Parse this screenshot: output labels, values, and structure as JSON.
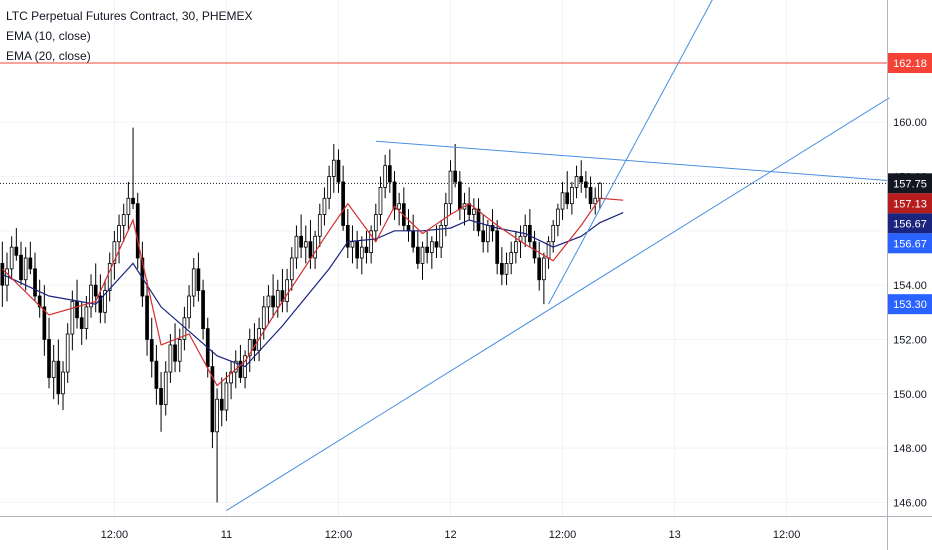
{
  "legend": {
    "title": "LTC Perpetual Futures Contract, 30, PHEMEX",
    "ema10": "EMA (10, close)",
    "ema20": "EMA (20, close)"
  },
  "colors": {
    "up": "#ffffff",
    "down": "#000000",
    "ema10": "#d32f2f",
    "ema20": "#1a237e",
    "trendline": "#4a8fe0",
    "resistance": "#f44336",
    "grid": "#f0f3fa",
    "axis": "#b2b5be"
  },
  "chart_data": {
    "type": "candlestick",
    "title": "LTC Perpetual Futures Contract, 30, PHEMEX",
    "ylim": [
      145.5,
      164.5
    ],
    "y_ticks": [
      "146.00",
      "148.00",
      "150.00",
      "152.00",
      "154.00",
      "156.00",
      "158.00",
      "160.00"
    ],
    "x_ticks": [
      {
        "label": "12:00",
        "bar": 24
      },
      {
        "label": "11",
        "bar": 48
      },
      {
        "label": "12:00",
        "bar": 72
      },
      {
        "label": "12",
        "bar": 96
      },
      {
        "label": "12:00",
        "bar": 120
      },
      {
        "label": "13",
        "bar": 144
      },
      {
        "label": "12:00",
        "bar": 168
      }
    ],
    "total_bars": 190,
    "ohlc": [
      [
        154.8,
        155.6,
        153.2,
        154.0
      ],
      [
        154.0,
        155.2,
        153.4,
        154.6
      ],
      [
        154.6,
        155.8,
        154.2,
        155.4
      ],
      [
        155.4,
        156.1,
        154.9,
        155.1
      ],
      [
        155.1,
        155.6,
        154.0,
        154.2
      ],
      [
        154.2,
        155.4,
        153.8,
        155.0
      ],
      [
        155.0,
        155.6,
        154.4,
        154.6
      ],
      [
        154.6,
        155.2,
        153.4,
        153.6
      ],
      [
        153.6,
        154.2,
        152.8,
        153.2
      ],
      [
        153.2,
        154.0,
        151.4,
        152.0
      ],
      [
        152.0,
        152.8,
        150.2,
        150.6
      ],
      [
        150.6,
        151.8,
        149.8,
        151.2
      ],
      [
        151.2,
        152.0,
        149.6,
        150.0
      ],
      [
        150.0,
        151.2,
        149.4,
        150.8
      ],
      [
        150.8,
        152.6,
        150.4,
        152.2
      ],
      [
        152.2,
        153.8,
        151.6,
        153.4
      ],
      [
        153.4,
        154.2,
        152.4,
        152.8
      ],
      [
        152.8,
        153.4,
        151.8,
        152.4
      ],
      [
        152.4,
        153.6,
        152.0,
        153.2
      ],
      [
        153.2,
        154.4,
        152.8,
        154.0
      ],
      [
        154.0,
        154.8,
        153.0,
        153.6
      ],
      [
        153.6,
        154.4,
        152.6,
        153.0
      ],
      [
        153.0,
        154.2,
        152.6,
        153.8
      ],
      [
        153.8,
        155.2,
        153.4,
        154.8
      ],
      [
        154.8,
        156.0,
        154.2,
        155.6
      ],
      [
        155.6,
        156.6,
        154.8,
        156.2
      ],
      [
        156.2,
        157.0,
        155.6,
        156.6
      ],
      [
        156.6,
        157.8,
        156.0,
        157.2
      ],
      [
        157.2,
        159.8,
        156.8,
        157.0
      ],
      [
        157.0,
        157.4,
        154.6,
        155.0
      ],
      [
        155.0,
        155.6,
        153.2,
        153.6
      ],
      [
        153.6,
        154.2,
        151.4,
        152.0
      ],
      [
        152.0,
        152.8,
        150.6,
        151.2
      ],
      [
        151.2,
        151.8,
        149.6,
        150.2
      ],
      [
        150.2,
        150.8,
        148.6,
        149.6
      ],
      [
        149.6,
        151.2,
        149.2,
        150.8
      ],
      [
        150.8,
        152.2,
        150.4,
        151.8
      ],
      [
        151.8,
        152.6,
        150.8,
        151.2
      ],
      [
        151.2,
        152.4,
        150.8,
        152.0
      ],
      [
        152.0,
        153.2,
        151.6,
        152.8
      ],
      [
        152.8,
        154.0,
        152.4,
        153.6
      ],
      [
        153.6,
        155.0,
        153.2,
        154.6
      ],
      [
        154.6,
        155.2,
        153.4,
        153.8
      ],
      [
        153.8,
        154.2,
        152.0,
        152.4
      ],
      [
        152.4,
        152.8,
        150.6,
        151.0
      ],
      [
        151.0,
        151.6,
        148.0,
        148.6
      ],
      [
        148.6,
        150.2,
        146.0,
        149.8
      ],
      [
        149.8,
        150.6,
        148.8,
        149.4
      ],
      [
        149.4,
        150.8,
        149.0,
        150.4
      ],
      [
        150.4,
        151.2,
        149.8,
        150.8
      ],
      [
        150.8,
        151.6,
        150.2,
        151.2
      ],
      [
        151.2,
        151.8,
        150.4,
        150.6
      ],
      [
        150.6,
        151.6,
        150.2,
        151.4
      ],
      [
        151.4,
        152.4,
        150.8,
        152.0
      ],
      [
        152.0,
        152.6,
        151.2,
        151.6
      ],
      [
        151.6,
        152.8,
        151.2,
        152.4
      ],
      [
        152.4,
        153.6,
        152.0,
        153.2
      ],
      [
        153.2,
        154.0,
        152.6,
        153.6
      ],
      [
        153.6,
        154.4,
        152.8,
        153.2
      ],
      [
        153.2,
        154.2,
        152.8,
        153.8
      ],
      [
        153.8,
        154.6,
        153.0,
        153.4
      ],
      [
        153.4,
        154.6,
        153.0,
        154.2
      ],
      [
        154.2,
        155.4,
        153.8,
        155.0
      ],
      [
        155.0,
        156.2,
        154.6,
        155.8
      ],
      [
        155.8,
        156.6,
        155.0,
        155.4
      ],
      [
        155.4,
        156.2,
        154.8,
        155.6
      ],
      [
        155.6,
        156.4,
        154.6,
        155.0
      ],
      [
        155.0,
        156.0,
        154.6,
        155.8
      ],
      [
        155.8,
        157.0,
        155.4,
        156.6
      ],
      [
        156.6,
        157.6,
        156.2,
        157.2
      ],
      [
        157.2,
        158.4,
        156.8,
        158.0
      ],
      [
        158.0,
        159.2,
        157.4,
        158.6
      ],
      [
        158.6,
        159.0,
        157.4,
        157.8
      ],
      [
        157.8,
        158.4,
        156.0,
        156.2
      ],
      [
        156.2,
        156.8,
        155.0,
        155.4
      ],
      [
        155.4,
        156.2,
        154.8,
        155.6
      ],
      [
        155.6,
        156.0,
        154.6,
        155.0
      ],
      [
        155.0,
        155.8,
        154.4,
        155.4
      ],
      [
        155.4,
        156.0,
        154.8,
        155.2
      ],
      [
        155.2,
        156.2,
        154.8,
        156.0
      ],
      [
        156.0,
        157.0,
        155.6,
        156.6
      ],
      [
        156.6,
        158.0,
        156.2,
        157.6
      ],
      [
        157.6,
        158.8,
        157.2,
        158.4
      ],
      [
        158.4,
        159.0,
        157.4,
        157.8
      ],
      [
        157.8,
        158.2,
        156.4,
        156.8
      ],
      [
        156.8,
        157.4,
        156.2,
        157.0
      ],
      [
        157.0,
        157.6,
        156.0,
        156.2
      ],
      [
        156.2,
        156.8,
        155.6,
        156.0
      ],
      [
        156.0,
        156.6,
        155.2,
        155.4
      ],
      [
        155.4,
        156.0,
        154.6,
        154.8
      ],
      [
        154.8,
        155.6,
        154.2,
        155.4
      ],
      [
        155.4,
        156.0,
        154.8,
        155.2
      ],
      [
        155.2,
        155.8,
        154.6,
        155.6
      ],
      [
        155.6,
        156.2,
        155.0,
        155.4
      ],
      [
        155.4,
        156.4,
        155.0,
        156.2
      ],
      [
        156.2,
        157.4,
        155.8,
        157.0
      ],
      [
        157.0,
        158.6,
        156.6,
        158.2
      ],
      [
        158.2,
        159.2,
        157.6,
        157.8
      ],
      [
        157.8,
        158.2,
        156.4,
        156.8
      ],
      [
        156.8,
        157.4,
        156.2,
        157.0
      ],
      [
        157.0,
        157.6,
        156.4,
        156.6
      ],
      [
        156.6,
        157.2,
        156.0,
        156.8
      ],
      [
        156.8,
        157.2,
        155.8,
        156.0
      ],
      [
        156.0,
        156.6,
        155.2,
        155.6
      ],
      [
        155.6,
        156.4,
        155.2,
        156.2
      ],
      [
        156.2,
        156.8,
        155.6,
        156.0
      ],
      [
        156.0,
        156.4,
        154.4,
        154.8
      ],
      [
        154.8,
        155.4,
        154.0,
        154.4
      ],
      [
        154.4,
        155.2,
        154.0,
        154.8
      ],
      [
        154.8,
        155.6,
        154.4,
        155.2
      ],
      [
        155.2,
        156.0,
        154.8,
        155.6
      ],
      [
        155.6,
        156.2,
        155.0,
        155.8
      ],
      [
        155.8,
        156.6,
        155.4,
        156.2
      ],
      [
        156.2,
        156.8,
        155.4,
        155.6
      ],
      [
        155.6,
        156.0,
        154.8,
        155.0
      ],
      [
        155.0,
        155.6,
        153.8,
        154.2
      ],
      [
        154.2,
        155.2,
        153.3,
        155.0
      ],
      [
        155.0,
        155.8,
        154.6,
        155.6
      ],
      [
        155.6,
        156.4,
        155.2,
        156.2
      ],
      [
        156.2,
        157.0,
        155.8,
        156.8
      ],
      [
        156.8,
        157.8,
        156.4,
        157.4
      ],
      [
        157.4,
        158.2,
        156.8,
        157.0
      ],
      [
        157.0,
        157.8,
        156.6,
        157.6
      ],
      [
        157.6,
        158.4,
        157.2,
        158.0
      ],
      [
        158.0,
        158.6,
        157.4,
        157.8
      ],
      [
        157.8,
        158.2,
        157.2,
        157.6
      ],
      [
        157.6,
        158.0,
        156.8,
        157.0
      ],
      [
        157.0,
        157.6,
        156.6,
        157.2
      ],
      [
        157.2,
        157.8,
        156.8,
        157.75
      ]
    ],
    "ema10": [
      [
        0,
        154.6
      ],
      [
        10,
        152.9
      ],
      [
        20,
        153.4
      ],
      [
        28,
        156.4
      ],
      [
        34,
        151.8
      ],
      [
        40,
        152.2
      ],
      [
        46,
        150.3
      ],
      [
        52,
        151.2
      ],
      [
        60,
        153.4
      ],
      [
        70,
        156.0
      ],
      [
        74,
        157.0
      ],
      [
        80,
        155.6
      ],
      [
        84,
        156.9
      ],
      [
        90,
        155.9
      ],
      [
        96,
        156.6
      ],
      [
        100,
        157.0
      ],
      [
        106,
        156.2
      ],
      [
        112,
        155.5
      ],
      [
        118,
        154.9
      ],
      [
        124,
        156.2
      ],
      [
        128,
        157.2
      ],
      [
        133,
        157.13
      ]
    ],
    "ema20": [
      [
        0,
        154.4
      ],
      [
        10,
        153.6
      ],
      [
        20,
        153.3
      ],
      [
        28,
        154.8
      ],
      [
        34,
        153.2
      ],
      [
        40,
        152.3
      ],
      [
        46,
        151.4
      ],
      [
        52,
        151.0
      ],
      [
        60,
        152.5
      ],
      [
        70,
        154.6
      ],
      [
        74,
        155.6
      ],
      [
        80,
        155.7
      ],
      [
        84,
        156.0
      ],
      [
        90,
        156.0
      ],
      [
        96,
        156.1
      ],
      [
        100,
        156.4
      ],
      [
        106,
        156.1
      ],
      [
        112,
        155.9
      ],
      [
        118,
        155.4
      ],
      [
        124,
        155.8
      ],
      [
        128,
        156.3
      ],
      [
        133,
        156.67
      ]
    ],
    "trendlines": [
      {
        "from": [
          48,
          145.7
        ],
        "to": [
          190,
          160.9
        ]
      },
      {
        "from": [
          117,
          153.3
        ],
        "to": [
          153,
          164.8
        ]
      },
      {
        "from": [
          80,
          159.3
        ],
        "to": [
          190,
          157.85
        ]
      }
    ],
    "resistance": 162.18,
    "price_tags": [
      {
        "value": 162.18,
        "label": "162.18",
        "bg": "#f44336",
        "color": "#ffffff"
      },
      {
        "value": 157.75,
        "label": "157.75",
        "bg": "#131722",
        "color": "#ffffff"
      },
      {
        "value": 157.13,
        "label": "157.13",
        "bg": "#b71c1c",
        "color": "#ffffff"
      },
      {
        "value": 156.67,
        "label": "156.67",
        "bg": "#1a237e",
        "color": "#ffffff"
      },
      {
        "value": 156.67,
        "label": "156.67",
        "bg": "#2962ff",
        "color": "#ffffff",
        "slot": 1
      },
      {
        "value": 153.3,
        "label": "153.30",
        "bg": "#2962ff",
        "color": "#ffffff"
      }
    ]
  }
}
